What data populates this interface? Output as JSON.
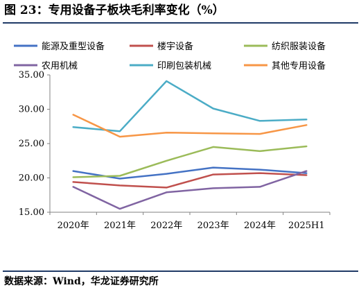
{
  "header": {
    "title": "图 23：专用设备子板块毛利率变化（%）"
  },
  "footer": {
    "source": "数据来源：Wind，华龙证券研究所"
  },
  "chart_data": {
    "type": "line",
    "title": "图 23：专用设备子板块毛利率变化（%）",
    "xlabel": "",
    "ylabel": "",
    "categories": [
      "2020年",
      "2021年",
      "2022年",
      "2023年",
      "2024年",
      "2025H1"
    ],
    "ylim": [
      15,
      35
    ],
    "yticks": [
      "15.00",
      "20.00",
      "25.00",
      "30.00",
      "35.00"
    ],
    "grid": "none",
    "legend_position": "top",
    "series": [
      {
        "name": "能源及重型设备",
        "color": "#4472C4",
        "values": [
          21.0,
          19.9,
          20.6,
          21.5,
          21.2,
          20.7
        ]
      },
      {
        "name": "楼宇设备",
        "color": "#C0504D",
        "values": [
          19.4,
          18.9,
          18.6,
          20.5,
          20.7,
          20.4
        ]
      },
      {
        "name": "纺织服装设备",
        "color": "#9BBB59",
        "values": [
          20.1,
          20.3,
          22.5,
          24.5,
          23.9,
          24.6
        ]
      },
      {
        "name": "农用机械",
        "color": "#8064A2",
        "values": [
          18.7,
          15.5,
          17.9,
          18.5,
          18.7,
          21.0
        ]
      },
      {
        "name": "印刷包装机械",
        "color": "#4BACC6",
        "values": [
          27.4,
          26.8,
          34.1,
          30.1,
          28.3,
          28.5
        ]
      },
      {
        "name": "其他专用设备",
        "color": "#F79646",
        "values": [
          29.2,
          26.0,
          26.6,
          26.5,
          26.4,
          27.7
        ]
      }
    ]
  }
}
